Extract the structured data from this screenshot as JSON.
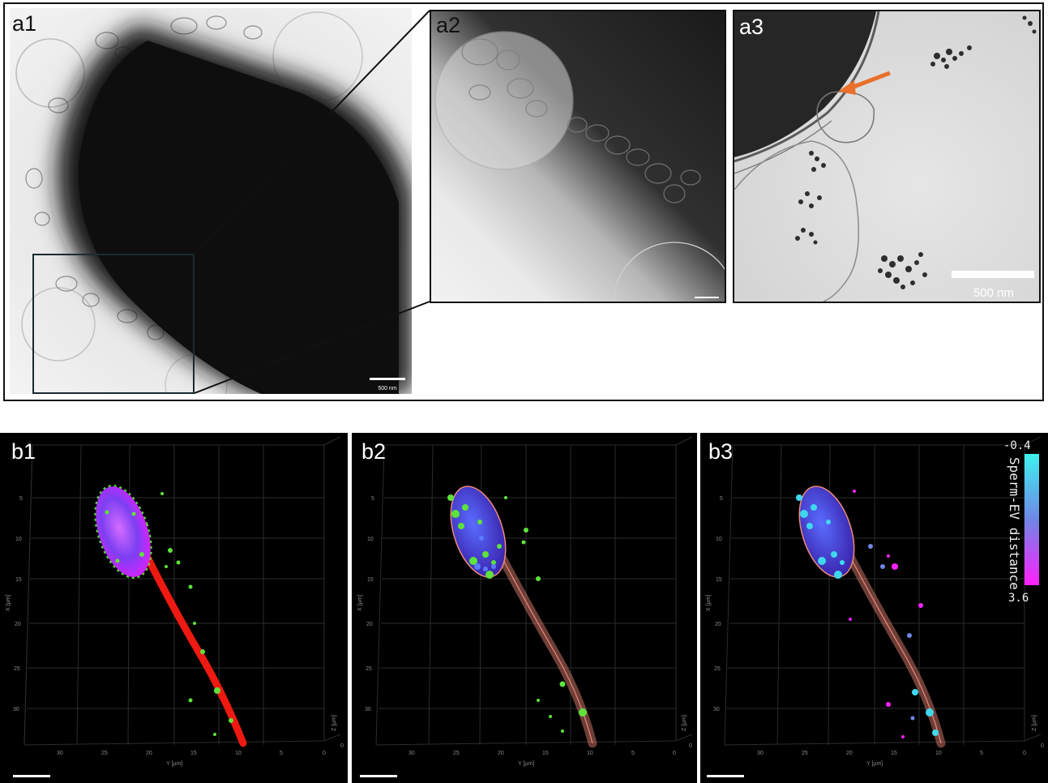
{
  "panels": {
    "a1": {
      "label": "a1",
      "scale_bar": "500 nm"
    },
    "a2": {
      "label": "a2"
    },
    "a3": {
      "label": "a3",
      "scale_bar": "500 nm",
      "arrow_color": "#e8702a"
    },
    "b1": {
      "label": "b1"
    },
    "b2": {
      "label": "b2"
    },
    "b3": {
      "label": "b3"
    }
  },
  "axes": {
    "x_label": "X [µm]",
    "y_label": "Y [µm]",
    "z_label": "Z [µm]",
    "x_ticks": [
      "5",
      "10",
      "15",
      "20",
      "25",
      "30"
    ],
    "y_ticks": [
      "30",
      "25",
      "20",
      "15",
      "10",
      "5",
      "0"
    ],
    "z_ticks": [
      "0"
    ]
  },
  "colorbar": {
    "title": "Sperm-EV distance",
    "max_label": "-0.4",
    "min_label": "3.6",
    "colors": [
      "#3ff2ef",
      "#6f86e6",
      "#ff20ff"
    ]
  },
  "colors": {
    "sperm_tail": "#ee1a12",
    "sperm_head": "#6a3df0",
    "ev_green": "#5de33a",
    "outline": "#ef8a7a",
    "head_dark": "#3820a8"
  }
}
